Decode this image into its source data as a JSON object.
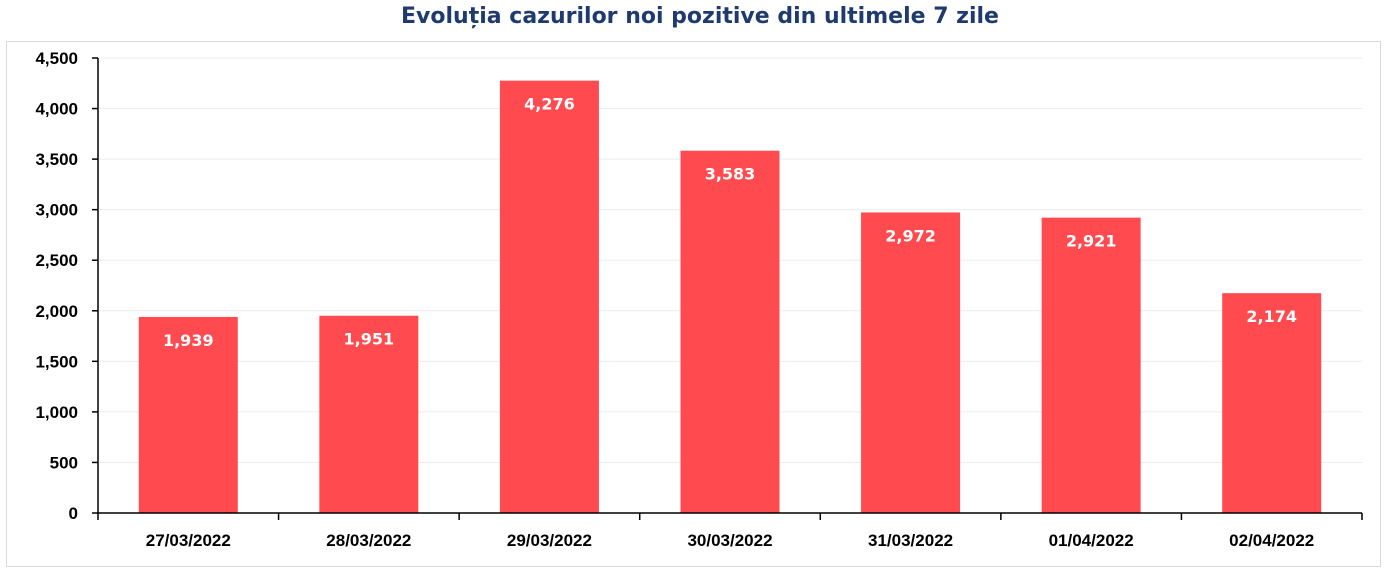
{
  "chart_data": {
    "type": "bar",
    "title": "Evoluția cazurilor noi pozitive din ultimele 7 zile",
    "categories": [
      "27/03/2022",
      "28/03/2022",
      "29/03/2022",
      "30/03/2022",
      "31/03/2022",
      "01/04/2022",
      "02/04/2022"
    ],
    "values": [
      1939,
      1951,
      4276,
      3583,
      2972,
      2921,
      2174
    ],
    "value_labels": [
      "1,939",
      "1,951",
      "4,276",
      "3,583",
      "2,972",
      "2,921",
      "2,174"
    ],
    "ylim": [
      0,
      4500
    ],
    "yticks": [
      0,
      500,
      1000,
      1500,
      2000,
      2500,
      3000,
      3500,
      4000,
      4500
    ],
    "ytick_labels": [
      "0",
      "500",
      "1,000",
      "1,500",
      "2,000",
      "2,500",
      "3,000",
      "3,500",
      "4,000",
      "4,500"
    ],
    "xlabel": "",
    "ylabel": "",
    "grid": true,
    "legend": "none",
    "colors": {
      "bar": "#ff4b4f",
      "title": "#1f3a6e",
      "grid": "#ececec",
      "axis": "#000000"
    }
  }
}
